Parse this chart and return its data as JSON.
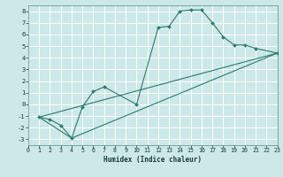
{
  "xlabel": "Humidex (Indice chaleur)",
  "ylabel": "",
  "bg_color": "#cce8e8",
  "grid_color": "#ffffff",
  "line_color": "#2a7a6a",
  "xlim": [
    0,
    23
  ],
  "ylim": [
    -3.5,
    8.5
  ],
  "xtick_vals": [
    0,
    1,
    2,
    3,
    4,
    5,
    6,
    7,
    8,
    9,
    10,
    11,
    12,
    13,
    14,
    15,
    16,
    17,
    18,
    19,
    20,
    21,
    22,
    23
  ],
  "ytick_vals": [
    -3,
    -2,
    -1,
    0,
    1,
    2,
    3,
    4,
    5,
    6,
    7,
    8
  ],
  "curve1_x": [
    1,
    2,
    3,
    4,
    5,
    6,
    7,
    10,
    12,
    13,
    14,
    15,
    16,
    17,
    18,
    19,
    20,
    21,
    23
  ],
  "curve1_y": [
    -1.1,
    -1.3,
    -1.8,
    -2.9,
    -0.2,
    1.1,
    1.5,
    0.0,
    6.6,
    6.7,
    8.0,
    8.1,
    8.1,
    7.0,
    5.8,
    5.1,
    5.1,
    4.8,
    4.4
  ],
  "curve2_x": [
    1,
    23
  ],
  "curve2_y": [
    -1.1,
    4.4
  ],
  "curve3_x": [
    1,
    4,
    23
  ],
  "curve3_y": [
    -1.1,
    -2.9,
    4.4
  ],
  "xlabel_fontsize": 5.5,
  "tick_fontsize": 4.8
}
